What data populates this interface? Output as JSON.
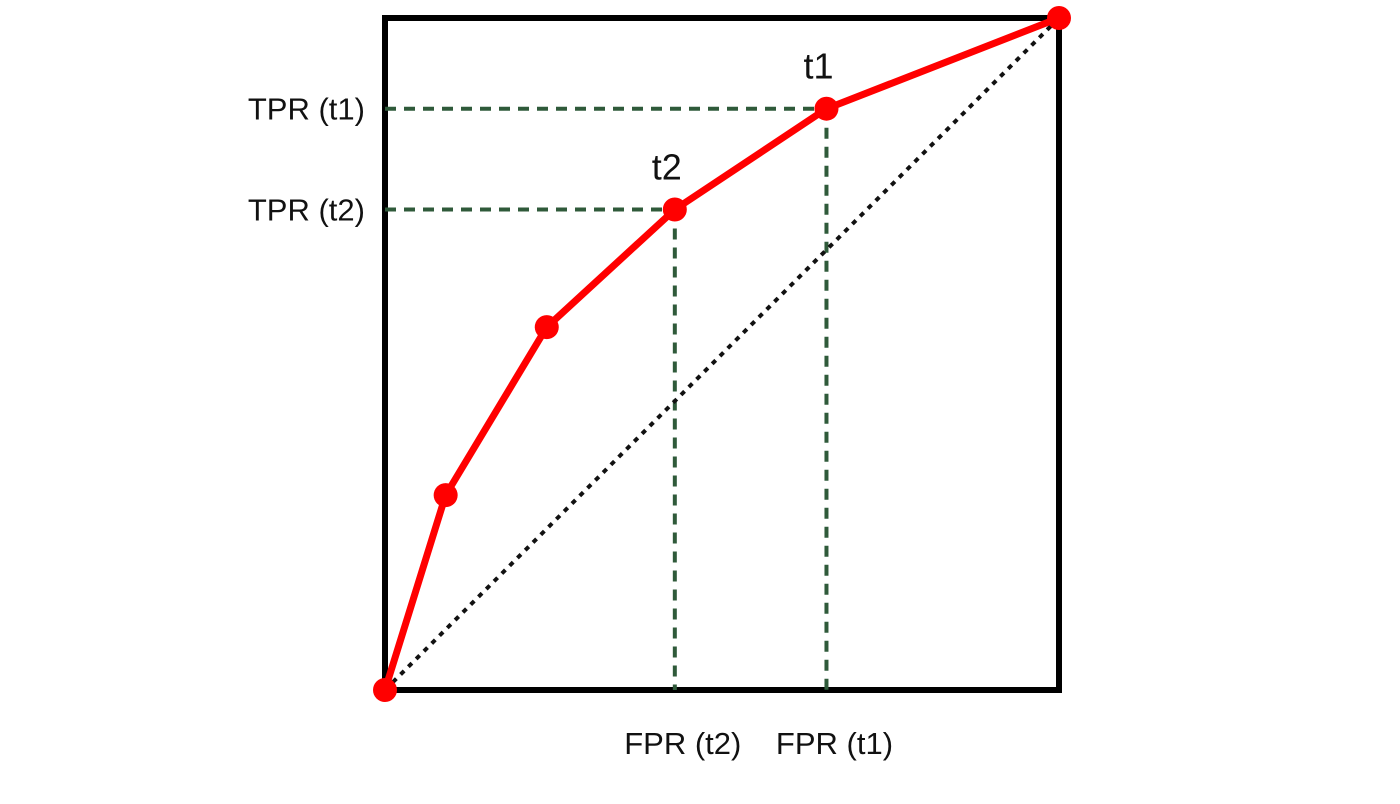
{
  "chart_data": {
    "type": "line",
    "title": "",
    "xlabel": "",
    "ylabel": "",
    "xlim": [
      0,
      1
    ],
    "ylim": [
      0,
      1
    ],
    "grid": false,
    "legend": "none",
    "series": [
      {
        "kind": "roc-curve",
        "color": "#ff0000",
        "x": [
          0.0,
          0.09,
          0.24,
          0.43,
          0.655,
          1.0
        ],
        "y": [
          0.0,
          0.29,
          0.54,
          0.715,
          0.865,
          1.0
        ]
      }
    ],
    "diagonal": {
      "x": [
        0,
        1
      ],
      "y": [
        0,
        1
      ],
      "style": "dotted",
      "color": "#111111"
    },
    "thresholds": [
      {
        "label": "t1",
        "fpr": 0.655,
        "tpr": 0.865,
        "tpr_label": "TPR (t1)",
        "fpr_label": "FPR (t1)"
      },
      {
        "label": "t2",
        "fpr": 0.43,
        "tpr": 0.715,
        "tpr_label": "TPR (t2)",
        "fpr_label": "FPR (t2)"
      }
    ],
    "colors": {
      "curve": "#ff0000",
      "guide": "#2f5a3a",
      "frame": "#000000",
      "diagonal": "#111111"
    }
  }
}
